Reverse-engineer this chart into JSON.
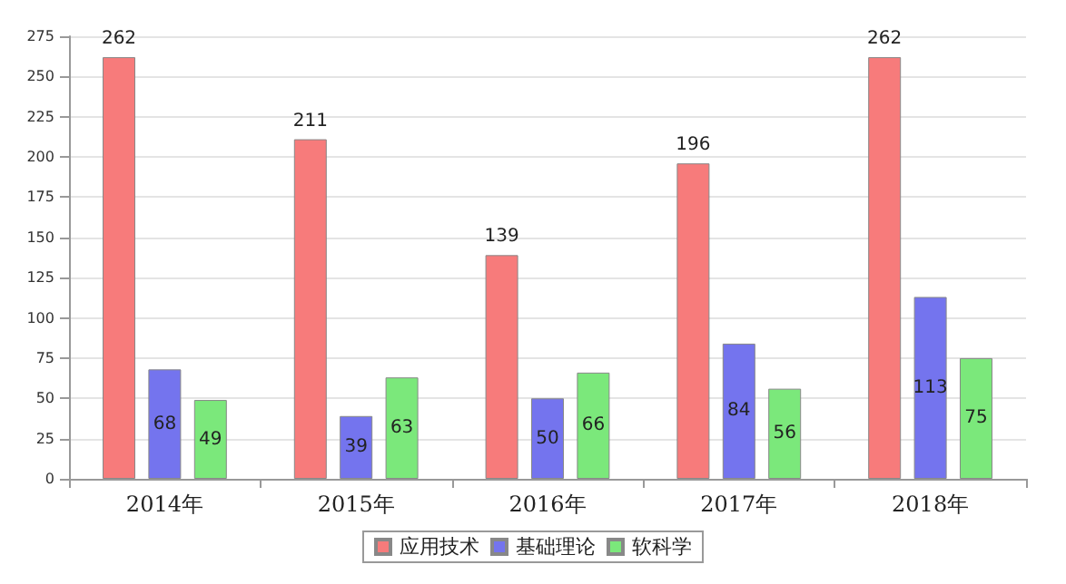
{
  "chart_data": {
    "type": "bar",
    "categories": [
      "2014年",
      "2015年",
      "2016年",
      "2017年",
      "2018年"
    ],
    "series": [
      {
        "name": "应用技术",
        "color": "#f77b7b",
        "values": [
          262,
          211,
          139,
          196,
          262
        ]
      },
      {
        "name": "基础理论",
        "color": "#7474ee",
        "values": [
          68,
          39,
          50,
          84,
          113
        ]
      },
      {
        "name": "软科学",
        "color": "#7be87b",
        "values": [
          49,
          63,
          66,
          56,
          75
        ]
      }
    ],
    "ylim": [
      0,
      275
    ],
    "yticks": [
      0,
      25,
      50,
      75,
      100,
      125,
      150,
      175,
      200,
      225,
      250,
      275
    ],
    "grid": "y",
    "legend": "bottom",
    "data_labels": true
  }
}
